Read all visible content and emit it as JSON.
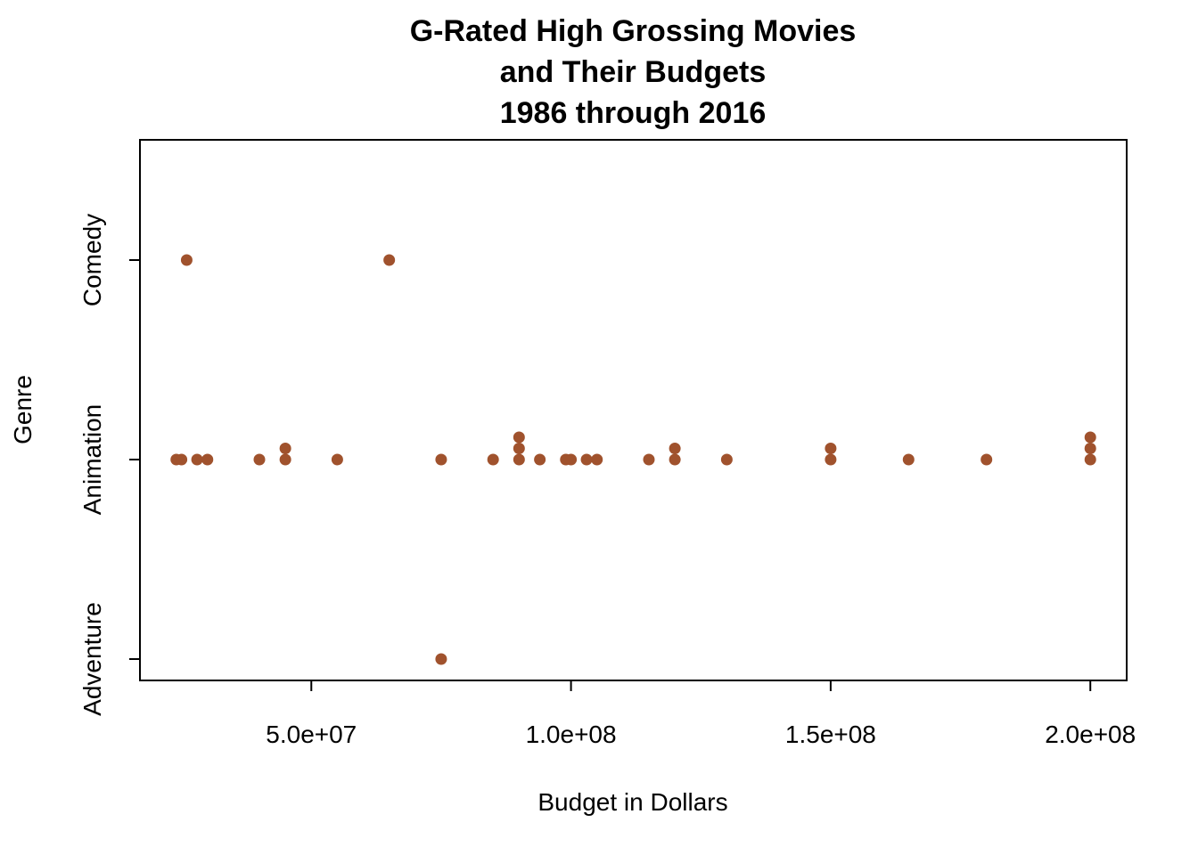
{
  "chart_data": {
    "type": "scatter",
    "title": [
      "G-Rated High Grossing Movies",
      "and Their Budgets",
      "1986 through 2016"
    ],
    "xlabel": "Budget in Dollars",
    "ylabel": "Genre",
    "xlim": [
      17000000,
      207000000
    ],
    "xticks": [
      50000000,
      100000000,
      150000000,
      200000000
    ],
    "xtick_labels": [
      "5.0e+07",
      "1.0e+08",
      "1.5e+08",
      "2.0e+08"
    ],
    "categories": [
      "Adventure",
      "Animation",
      "Comedy"
    ],
    "point_color": "#A0522D",
    "grid": false,
    "points": [
      {
        "x": 26000000,
        "genre": "Comedy",
        "offset": 0
      },
      {
        "x": 65000000,
        "genre": "Comedy",
        "offset": 0
      },
      {
        "x": 75000000,
        "genre": "Adventure",
        "offset": 0
      },
      {
        "x": 24000000,
        "genre": "Animation",
        "offset": 0
      },
      {
        "x": 25000000,
        "genre": "Animation",
        "offset": 0
      },
      {
        "x": 28000000,
        "genre": "Animation",
        "offset": 0
      },
      {
        "x": 30000000,
        "genre": "Animation",
        "offset": 0
      },
      {
        "x": 40000000,
        "genre": "Animation",
        "offset": 0
      },
      {
        "x": 45000000,
        "genre": "Animation",
        "offset": 0
      },
      {
        "x": 45000000,
        "genre": "Animation",
        "offset": 1
      },
      {
        "x": 55000000,
        "genre": "Animation",
        "offset": 0
      },
      {
        "x": 75000000,
        "genre": "Animation",
        "offset": 0
      },
      {
        "x": 85000000,
        "genre": "Animation",
        "offset": 0
      },
      {
        "x": 90000000,
        "genre": "Animation",
        "offset": 0
      },
      {
        "x": 90000000,
        "genre": "Animation",
        "offset": 1
      },
      {
        "x": 90000000,
        "genre": "Animation",
        "offset": 2
      },
      {
        "x": 94000000,
        "genre": "Animation",
        "offset": 0
      },
      {
        "x": 99000000,
        "genre": "Animation",
        "offset": 0
      },
      {
        "x": 100000000,
        "genre": "Animation",
        "offset": 0
      },
      {
        "x": 103000000,
        "genre": "Animation",
        "offset": 0
      },
      {
        "x": 105000000,
        "genre": "Animation",
        "offset": 0
      },
      {
        "x": 115000000,
        "genre": "Animation",
        "offset": 0
      },
      {
        "x": 120000000,
        "genre": "Animation",
        "offset": 0
      },
      {
        "x": 120000000,
        "genre": "Animation",
        "offset": 1
      },
      {
        "x": 130000000,
        "genre": "Animation",
        "offset": 0
      },
      {
        "x": 150000000,
        "genre": "Animation",
        "offset": 0
      },
      {
        "x": 150000000,
        "genre": "Animation",
        "offset": 1
      },
      {
        "x": 165000000,
        "genre": "Animation",
        "offset": 0
      },
      {
        "x": 180000000,
        "genre": "Animation",
        "offset": 0
      },
      {
        "x": 200000000,
        "genre": "Animation",
        "offset": 0
      },
      {
        "x": 200000000,
        "genre": "Animation",
        "offset": 1
      },
      {
        "x": 200000000,
        "genre": "Animation",
        "offset": 2
      }
    ]
  }
}
